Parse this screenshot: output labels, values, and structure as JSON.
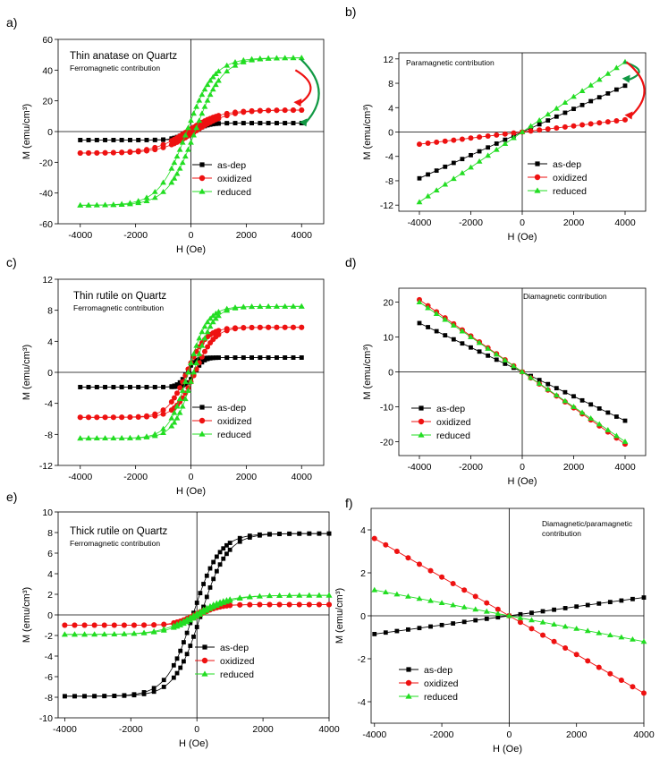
{
  "chart_data": [
    {
      "panel_label": "a)",
      "type": "scatter",
      "title": "Thin anatase on Quartz",
      "subtitle": "Ferromagnetic contribution",
      "xlabel": "H (Oe)",
      "ylabel": "M (emu/cm³)",
      "xlim": [
        -4800,
        4800
      ],
      "ylim": [
        -60,
        60
      ],
      "xticks": [
        -4000,
        -2000,
        0,
        2000,
        4000
      ],
      "yticks": [
        -60,
        -40,
        -20,
        0,
        20,
        40,
        60
      ],
      "legend": "lower-right",
      "shape": "hysteresis",
      "series": [
        {
          "name": "as-dep",
          "color": "#000000",
          "marker": "square",
          "saturation": 5.5,
          "width": 500,
          "coercivity": 120,
          "x": [
            -4000,
            -3000,
            -2000,
            -1000,
            0,
            500,
            1000,
            2000,
            3000,
            4000
          ]
        },
        {
          "name": "oxidized",
          "color": "#ee1111",
          "marker": "circle",
          "saturation": 14,
          "width": 1200,
          "coercivity": 150,
          "x": [
            -4000,
            -3000,
            -2000,
            -1000,
            0,
            500,
            1000,
            2000,
            3000,
            4000
          ]
        },
        {
          "name": "reduced",
          "color": "#22dd22",
          "marker": "triangle",
          "saturation": 48,
          "width": 1000,
          "coercivity": 150,
          "x": [
            -4000,
            -3000,
            -2000,
            -1000,
            0,
            500,
            1000,
            2000,
            3000,
            4000
          ]
        }
      ],
      "annotations": [
        {
          "type": "arrow",
          "color": "#ee1111",
          "from": [
            4100,
            40
          ],
          "to": [
            4100,
            18
          ]
        },
        {
          "type": "arrow",
          "color": "#119944",
          "from": [
            4300,
            47
          ],
          "to": [
            4300,
            5
          ]
        }
      ]
    },
    {
      "panel_label": "b)",
      "type": "scatter",
      "title": "Paramagnetic contribution",
      "subtitle": "",
      "xlabel": "H (Oe)",
      "ylabel": "M (emu/cm³)",
      "xlim": [
        -4800,
        4800
      ],
      "ylim": [
        -13,
        13
      ],
      "xticks": [
        -4000,
        -2000,
        0,
        2000,
        4000
      ],
      "yticks": [
        -12,
        -8,
        -4,
        0,
        4,
        8,
        12
      ],
      "legend": "center-right",
      "shape": "linear",
      "series": [
        {
          "name": "as-dep",
          "color": "#000000",
          "marker": "square",
          "x": [
            -4000,
            -3000,
            -2000,
            -1000,
            0,
            1000,
            2000,
            3000,
            4000
          ],
          "y": [
            -7.6,
            -5.7,
            -3.8,
            -1.9,
            0,
            1.9,
            3.8,
            5.7,
            7.6
          ]
        },
        {
          "name": "oxidized",
          "color": "#ee1111",
          "marker": "circle",
          "x": [
            -4000,
            -3000,
            -2000,
            -1000,
            0,
            1000,
            2000,
            3000,
            4000
          ],
          "y": [
            -2.0,
            -1.5,
            -1.0,
            -0.5,
            0,
            0.5,
            1.0,
            1.5,
            2.0
          ]
        },
        {
          "name": "reduced",
          "color": "#22dd22",
          "marker": "triangle",
          "x": [
            -4000,
            -3000,
            -2000,
            -1000,
            0,
            1000,
            2000,
            3000,
            4000
          ],
          "y": [
            -11.5,
            -8.6,
            -5.8,
            -2.9,
            0,
            2.9,
            5.8,
            8.6,
            11.5
          ]
        }
      ],
      "annotations": [
        {
          "type": "arrow",
          "color": "#119944",
          "from": [
            4300,
            11.5
          ],
          "to": [
            4300,
            8.5
          ]
        },
        {
          "type": "arrow",
          "color": "#ee1111",
          "from": [
            4400,
            11.5
          ],
          "to": [
            4400,
            2.5
          ]
        }
      ]
    },
    {
      "panel_label": "c)",
      "type": "scatter",
      "title": "Thin rutile on Quartz",
      "subtitle": "Ferromagnetic contribution",
      "xlabel": "H (Oe)",
      "ylabel": "M (emu/cm³)",
      "xlim": [
        -4800,
        4800
      ],
      "ylim": [
        -12,
        12
      ],
      "xticks": [
        -4000,
        -2000,
        0,
        2000,
        4000
      ],
      "yticks": [
        -12,
        -8,
        -4,
        0,
        4,
        8,
        12
      ],
      "legend": "lower-right",
      "shape": "hysteresis",
      "series": [
        {
          "name": "as-dep",
          "color": "#000000",
          "marker": "square",
          "saturation": 1.9,
          "width": 300,
          "coercivity": 150,
          "x": [
            -4000,
            -3000,
            -2000,
            -1000,
            0,
            500,
            1000,
            2000,
            3000,
            4000
          ]
        },
        {
          "name": "oxidized",
          "color": "#ee1111",
          "marker": "circle",
          "saturation": 5.8,
          "width": 700,
          "coercivity": 150,
          "x": [
            -4000,
            -3000,
            -2000,
            -1000,
            0,
            500,
            1000,
            2000,
            3000,
            4000
          ]
        },
        {
          "name": "reduced",
          "color": "#22dd22",
          "marker": "triangle",
          "saturation": 8.5,
          "width": 700,
          "coercivity": 100,
          "x": [
            -4000,
            -3000,
            -2000,
            -1000,
            0,
            500,
            1000,
            2000,
            3000,
            4000
          ]
        }
      ],
      "annotations": []
    },
    {
      "panel_label": "d)",
      "type": "scatter",
      "title": "Diamagnetic contribution",
      "subtitle": "",
      "xlabel": "H (Oe)",
      "ylabel": "M (emu/cm³)",
      "xlim": [
        -4800,
        4800
      ],
      "ylim": [
        -24,
        24
      ],
      "xticks": [
        -4000,
        -2000,
        0,
        2000,
        4000
      ],
      "yticks": [
        -20,
        -10,
        0,
        10,
        20
      ],
      "legend": "lower-left",
      "shape": "linear",
      "series": [
        {
          "name": "as-dep",
          "color": "#000000",
          "marker": "square",
          "x": [
            -4000,
            -3000,
            -2000,
            -1000,
            0,
            1000,
            2000,
            3000,
            4000
          ],
          "y": [
            14,
            10.5,
            7,
            3.5,
            0,
            -3.5,
            -7,
            -10.5,
            -14
          ]
        },
        {
          "name": "oxidized",
          "color": "#ee1111",
          "marker": "circle",
          "x": [
            -4000,
            -3000,
            -2000,
            -1000,
            0,
            1000,
            2000,
            3000,
            4000
          ],
          "y": [
            20.7,
            15.5,
            10.3,
            5.2,
            0,
            -5.2,
            -10.3,
            -15.5,
            -20.7
          ]
        },
        {
          "name": "reduced",
          "color": "#22dd22",
          "marker": "triangle",
          "x": [
            -4000,
            -3000,
            -2000,
            -1000,
            0,
            1000,
            2000,
            3000,
            4000
          ],
          "y": [
            20,
            15,
            10,
            5,
            0,
            -5,
            -10,
            -15,
            -20
          ]
        }
      ],
      "annotations": []
    },
    {
      "panel_label": "e)",
      "type": "scatter",
      "title": "Thick rutile on Quartz",
      "subtitle": "Ferromagnetic contribution",
      "xlabel": "H (Oe)",
      "ylabel": "M (emu/cm³)",
      "xlim": [
        -4200,
        4000
      ],
      "ylim": [
        -10,
        10
      ],
      "xticks": [
        -4000,
        -2000,
        0,
        2000,
        4000
      ],
      "yticks": [
        -10,
        -8,
        -6,
        -4,
        -2,
        0,
        2,
        4,
        6,
        8,
        10
      ],
      "legend": "lower-right",
      "shape": "hysteresis",
      "series": [
        {
          "name": "as-dep",
          "color": "#000000",
          "marker": "square",
          "saturation": 7.9,
          "width": 800,
          "coercivity": 120,
          "x": [
            -4000,
            -3000,
            -2000,
            -1000,
            0,
            500,
            1000,
            2000,
            3000,
            4000
          ]
        },
        {
          "name": "oxidized",
          "color": "#ee1111",
          "marker": "circle",
          "saturation": 1.0,
          "width": 600,
          "coercivity": 80,
          "x": [
            -4000,
            -3000,
            -2000,
            -1000,
            0,
            500,
            1000,
            2000,
            3000,
            4000
          ]
        },
        {
          "name": "reduced",
          "color": "#22dd22",
          "marker": "triangle",
          "saturation": 1.9,
          "width": 1000,
          "coercivity": 80,
          "x": [
            -4000,
            -3000,
            -2000,
            -1000,
            0,
            500,
            1000,
            2000,
            3000,
            4000
          ]
        }
      ],
      "annotations": []
    },
    {
      "panel_label": "f)",
      "type": "scatter",
      "title": "Diamagnetic/paramagnetic",
      "subtitle": "contribution",
      "xlabel": "H (Oe)",
      "ylabel": "M (emu/cm³)",
      "xlim": [
        -4100,
        4000
      ],
      "ylim": [
        -5,
        5
      ],
      "xticks": [
        -4000,
        -2000,
        0,
        2000,
        4000
      ],
      "yticks": [
        -4,
        -2,
        0,
        2,
        4
      ],
      "legend": "lower-left",
      "shape": "linear",
      "series": [
        {
          "name": "as-dep",
          "color": "#000000",
          "marker": "square",
          "x": [
            -4000,
            -3000,
            -2000,
            -1000,
            0,
            1000,
            2000,
            3000,
            4000
          ],
          "y": [
            -0.85,
            -0.64,
            -0.43,
            -0.21,
            0,
            0.21,
            0.43,
            0.64,
            0.85
          ]
        },
        {
          "name": "oxidized",
          "color": "#ee1111",
          "marker": "circle",
          "x": [
            -4000,
            -3000,
            -2000,
            -1000,
            0,
            1000,
            2000,
            3000,
            4000
          ],
          "y": [
            3.6,
            2.7,
            1.8,
            0.9,
            0,
            -0.9,
            -1.8,
            -2.7,
            -3.6
          ]
        },
        {
          "name": "reduced",
          "color": "#22dd22",
          "marker": "triangle",
          "x": [
            -4000,
            -3000,
            -2000,
            -1000,
            0,
            1000,
            2000,
            3000,
            4000
          ],
          "y": [
            1.2,
            0.9,
            0.6,
            0.3,
            0,
            -0.3,
            -0.6,
            -0.9,
            -1.2
          ]
        }
      ],
      "annotations": []
    }
  ]
}
